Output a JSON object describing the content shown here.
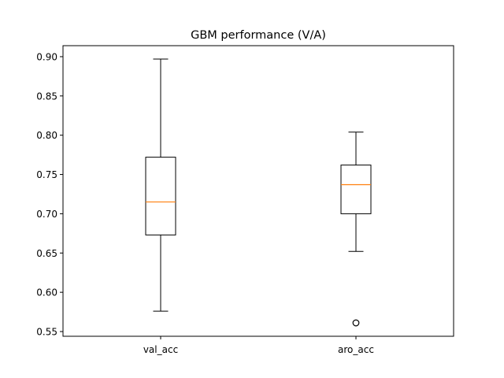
{
  "chart_data": {
    "type": "box",
    "title": "GBM performance (V/A)",
    "xlabel": "",
    "ylabel": "",
    "ylim": [
      0.544,
      0.914
    ],
    "yticks": [
      0.55,
      0.6,
      0.65,
      0.7,
      0.75,
      0.8,
      0.85,
      0.9
    ],
    "ytick_labels": [
      "0.55",
      "0.60",
      "0.65",
      "0.70",
      "0.75",
      "0.80",
      "0.85",
      "0.90"
    ],
    "grid": false,
    "categories": [
      "val_acc",
      "aro_acc"
    ],
    "boxes": [
      {
        "label": "val_acc",
        "whisker_low": 0.576,
        "q1": 0.673,
        "median": 0.715,
        "q3": 0.772,
        "whisker_high": 0.897,
        "outliers": []
      },
      {
        "label": "aro_acc",
        "whisker_low": 0.652,
        "q1": 0.7,
        "median": 0.737,
        "q3": 0.762,
        "whisker_high": 0.804,
        "outliers": [
          0.561
        ]
      }
    ],
    "colors": {
      "box": "#000000",
      "median": "#ff7f0e",
      "outlier": "#000000"
    }
  }
}
